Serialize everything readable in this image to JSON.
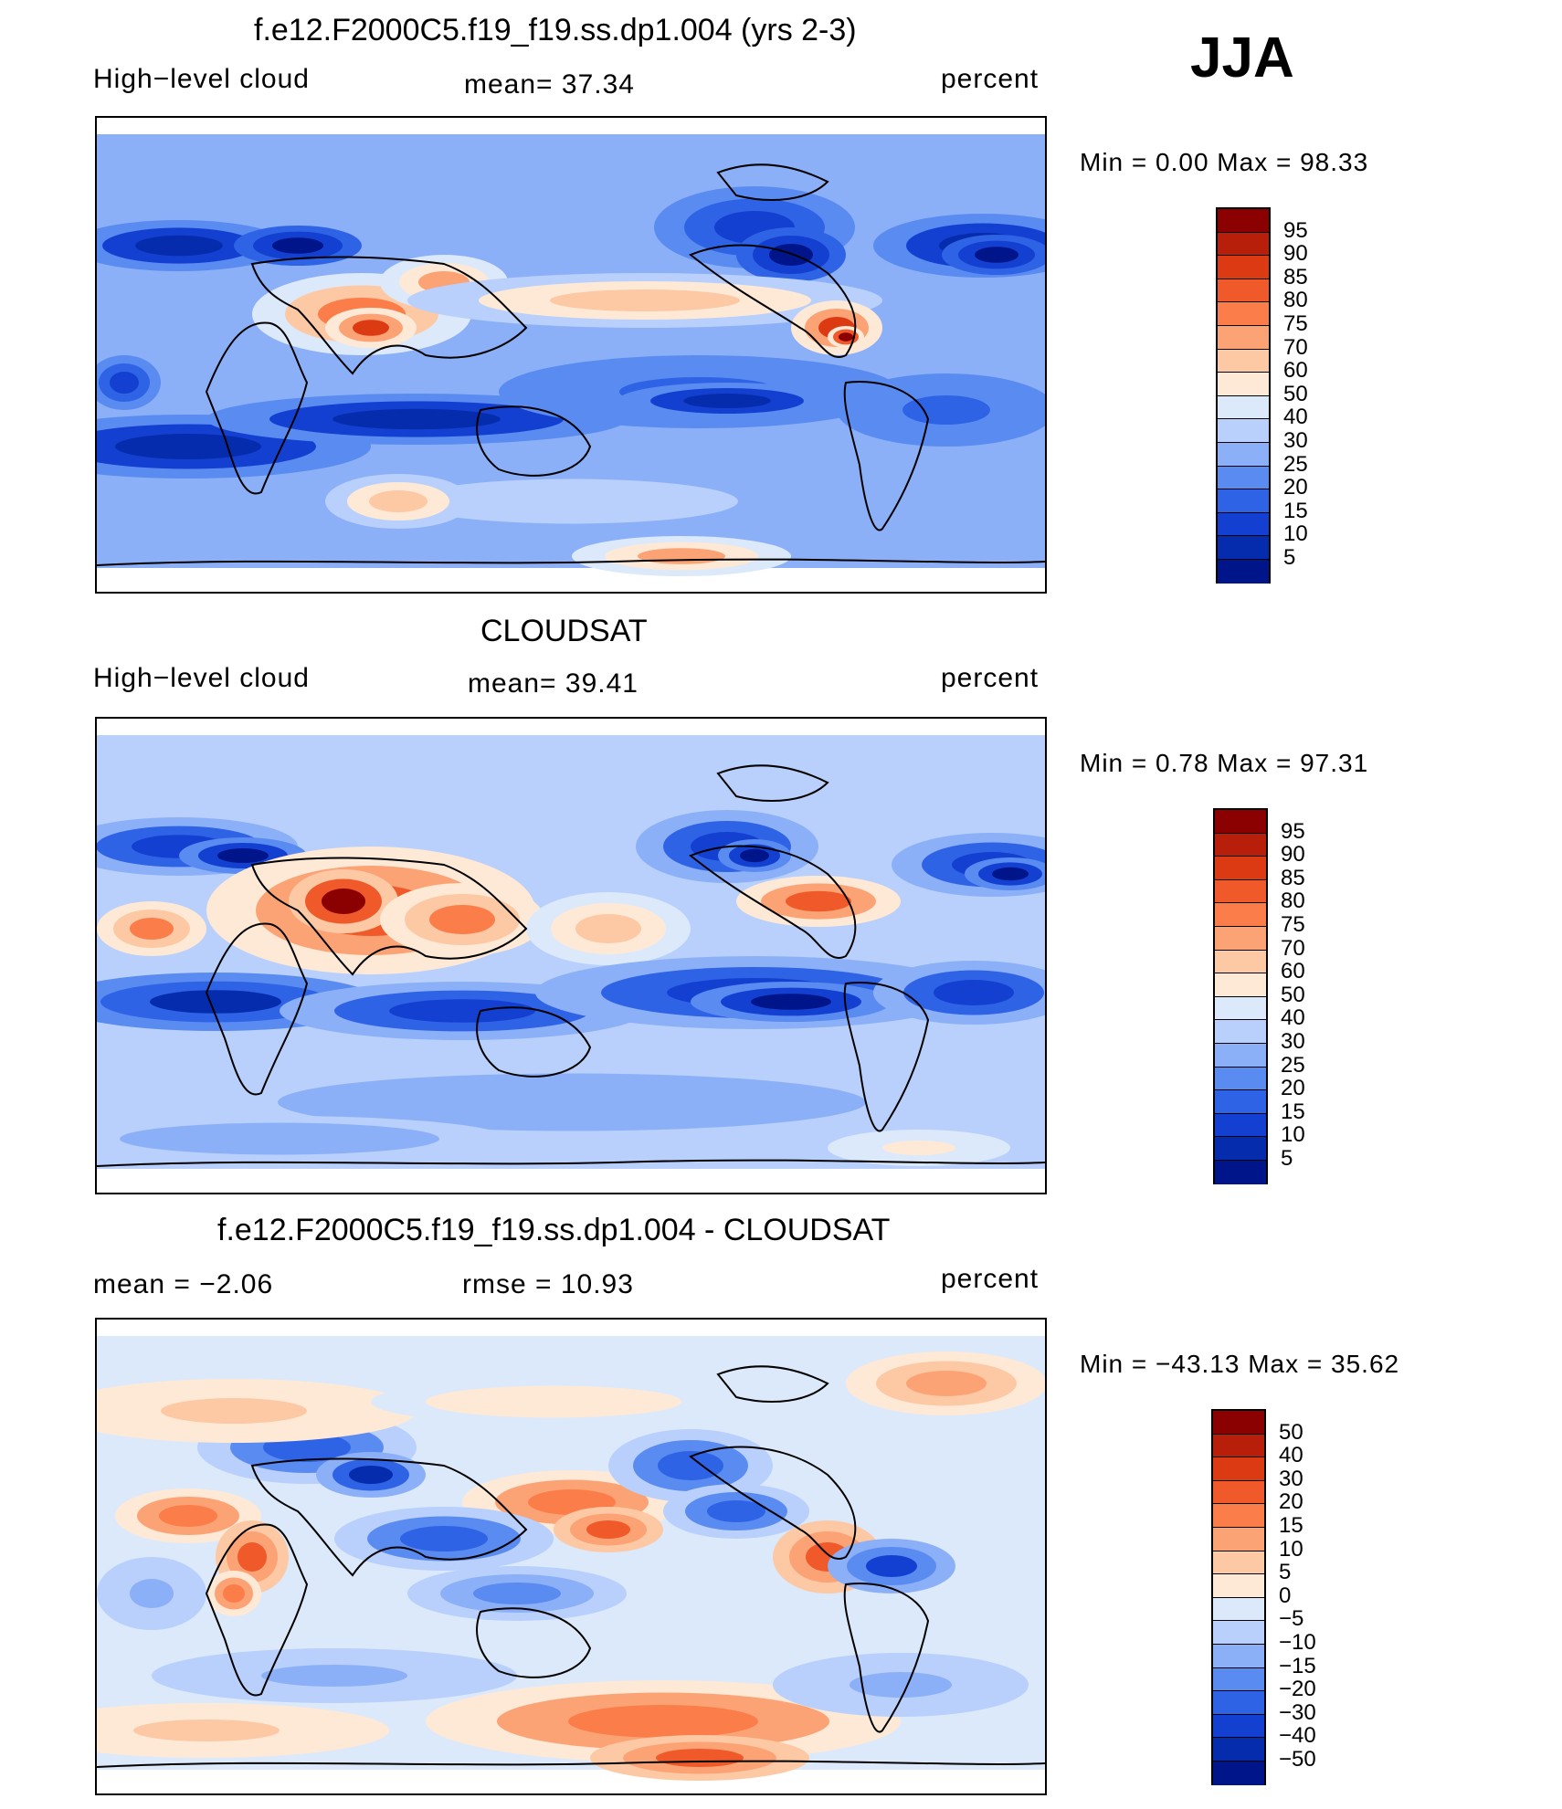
{
  "season": "JJA",
  "panels": [
    {
      "id": "model",
      "title": "f.e12.F2000C5.f19_f19.ss.dp1.004 (yrs 2-3)",
      "left_label": "High−level cloud",
      "center_label": "mean=   37.34",
      "right_label": "percent",
      "min_max": "Min =    0.00 Max =   98.33",
      "colorbar_labels": [
        "95",
        "90",
        "85",
        "80",
        "75",
        "70",
        "60",
        "50",
        "40",
        "30",
        "25",
        "20",
        "15",
        "10",
        "5"
      ],
      "colors": [
        "#8b0000",
        "#b81f0a",
        "#dc3a12",
        "#f05a2a",
        "#fb7d4a",
        "#fca375",
        "#fdc8a4",
        "#fee9d6",
        "#dce9fb",
        "#b8d0fb",
        "#8cb0f7",
        "#5a8bf0",
        "#2f63e6",
        "#1340d0",
        "#062cae",
        "#00158a"
      ]
    },
    {
      "id": "obs",
      "title": "CLOUDSAT",
      "left_label": "High−level cloud",
      "center_label": "mean=   39.41",
      "right_label": "percent",
      "min_max": "Min =    0.78 Max =   97.31",
      "colorbar_labels": [
        "95",
        "90",
        "85",
        "80",
        "75",
        "70",
        "60",
        "50",
        "40",
        "30",
        "25",
        "20",
        "15",
        "10",
        "5"
      ],
      "colors": [
        "#8b0000",
        "#b81f0a",
        "#dc3a12",
        "#f05a2a",
        "#fb7d4a",
        "#fca375",
        "#fdc8a4",
        "#fee9d6",
        "#dce9fb",
        "#b8d0fb",
        "#8cb0f7",
        "#5a8bf0",
        "#2f63e6",
        "#1340d0",
        "#062cae",
        "#00158a"
      ]
    },
    {
      "id": "diff",
      "title": "f.e12.F2000C5.f19_f19.ss.dp1.004 - CLOUDSAT",
      "left_label": "mean =   −2.06",
      "center_label": "rmse =   10.93",
      "right_label": "percent",
      "min_max": "Min = −43.13 Max =   35.62",
      "colorbar_labels": [
        "50",
        "40",
        "30",
        "20",
        "15",
        "10",
        "5",
        "0",
        "−5",
        "−10",
        "−15",
        "−20",
        "−30",
        "−40",
        "−50"
      ],
      "colors": [
        "#8b0000",
        "#b81f0a",
        "#dc3a12",
        "#f05a2a",
        "#fb7d4a",
        "#fca375",
        "#fdc8a4",
        "#fee9d6",
        "#dce9fb",
        "#b8d0fb",
        "#8cb0f7",
        "#5a8bf0",
        "#2f63e6",
        "#1340d0",
        "#062cae",
        "#00158a"
      ]
    }
  ],
  "chart_data": [
    {
      "type": "heatmap",
      "title": "f.e12.F2000C5.f19_f19.ss.dp1.004 (yrs 2-3)",
      "variable": "High-level cloud",
      "units": "percent",
      "mean": 37.34,
      "min": 0.0,
      "max": 98.33,
      "levels": [
        5,
        10,
        15,
        20,
        25,
        30,
        40,
        50,
        60,
        70,
        75,
        80,
        85,
        90,
        95
      ]
    },
    {
      "type": "heatmap",
      "title": "CLOUDSAT",
      "variable": "High-level cloud",
      "units": "percent",
      "mean": 39.41,
      "min": 0.78,
      "max": 97.31,
      "levels": [
        5,
        10,
        15,
        20,
        25,
        30,
        40,
        50,
        60,
        70,
        75,
        80,
        85,
        90,
        95
      ]
    },
    {
      "type": "heatmap",
      "title": "f.e12.F2000C5.f19_f19.ss.dp1.004 - CLOUDSAT",
      "units": "percent",
      "mean": -2.06,
      "rmse": 10.93,
      "min": -43.13,
      "max": 35.62,
      "levels": [
        -50,
        -40,
        -30,
        -20,
        -15,
        -10,
        -5,
        0,
        5,
        10,
        15,
        20,
        30,
        40,
        50
      ]
    }
  ]
}
